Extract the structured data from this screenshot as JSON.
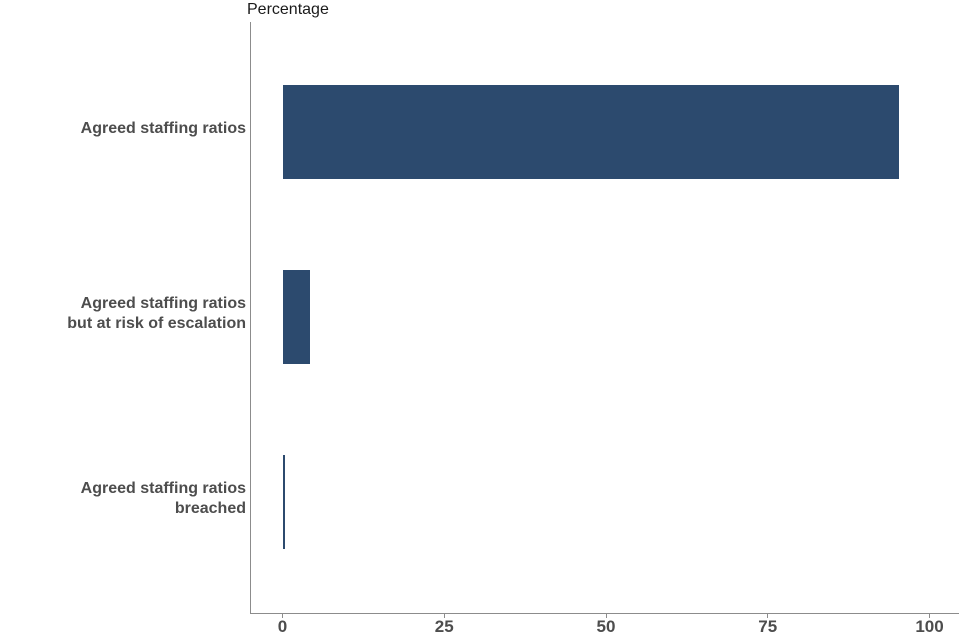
{
  "chart_data": {
    "type": "bar",
    "orientation": "horizontal",
    "title": "Percentage",
    "categories": [
      "Agreed staffing ratios",
      "Agreed staffing ratios\nbut at risk of escalation",
      "Agreed staffing ratios\nbreached"
    ],
    "values": [
      95.3,
      4.3,
      0.4
    ],
    "xlabel": "",
    "ylabel": "",
    "xlim": [
      0,
      100
    ],
    "x_ticks": [
      0,
      25,
      50,
      75,
      100
    ],
    "x_tick_labels": [
      "0",
      "25",
      "50",
      "75",
      "100"
    ],
    "grid": false,
    "legend": "none",
    "bar_color": "#2c4a6e"
  },
  "colors": {
    "bar": "#2c4a6e",
    "axis_line": "#8c8c8c",
    "tick_label": "#4d4d4d",
    "category_label": "#4d4d4d",
    "title": "#1a1a1a",
    "background": "#ffffff"
  }
}
